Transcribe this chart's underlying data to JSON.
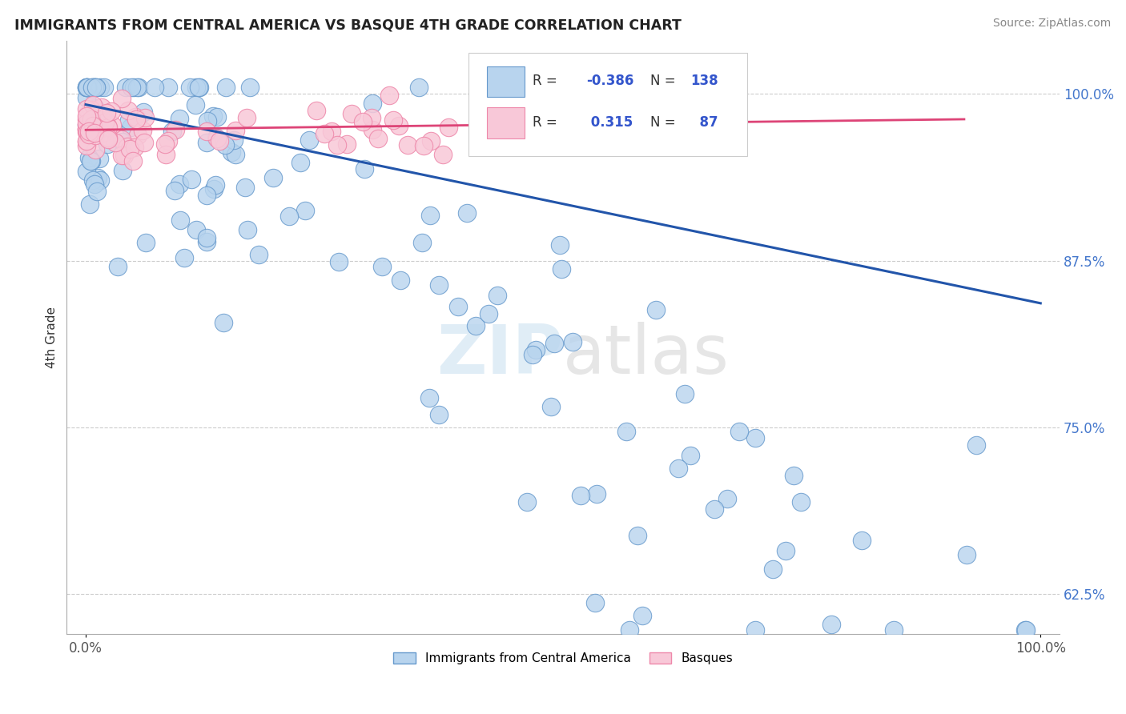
{
  "title": "IMMIGRANTS FROM CENTRAL AMERICA VS BASQUE 4TH GRADE CORRELATION CHART",
  "source": "Source: ZipAtlas.com",
  "ylabel": "4th Grade",
  "xlim": [
    -0.02,
    1.02
  ],
  "ylim": [
    0.595,
    1.04
  ],
  "yticks": [
    0.625,
    0.75,
    0.875,
    1.0
  ],
  "ytick_labels": [
    "62.5%",
    "75.0%",
    "87.5%",
    "100.0%"
  ],
  "xticks": [
    0.0,
    1.0
  ],
  "xtick_labels": [
    "0.0%",
    "100.0%"
  ],
  "blue_R": -0.386,
  "blue_N": 138,
  "pink_R": 0.315,
  "pink_N": 87,
  "blue_color": "#b8d4ee",
  "blue_edge_color": "#6699cc",
  "pink_color": "#f8c8d8",
  "pink_edge_color": "#ee88aa",
  "blue_line_color": "#2255aa",
  "pink_line_color": "#dd4477",
  "legend_label_blue": "Immigrants from Central America",
  "legend_label_pink": "Basques",
  "blue_line_x0": 0.0,
  "blue_line_y0": 0.992,
  "blue_line_x1": 1.0,
  "blue_line_y1": 0.843,
  "pink_line_x0": 0.0,
  "pink_line_y0": 0.973,
  "pink_line_x1": 0.92,
  "pink_line_y1": 0.981
}
